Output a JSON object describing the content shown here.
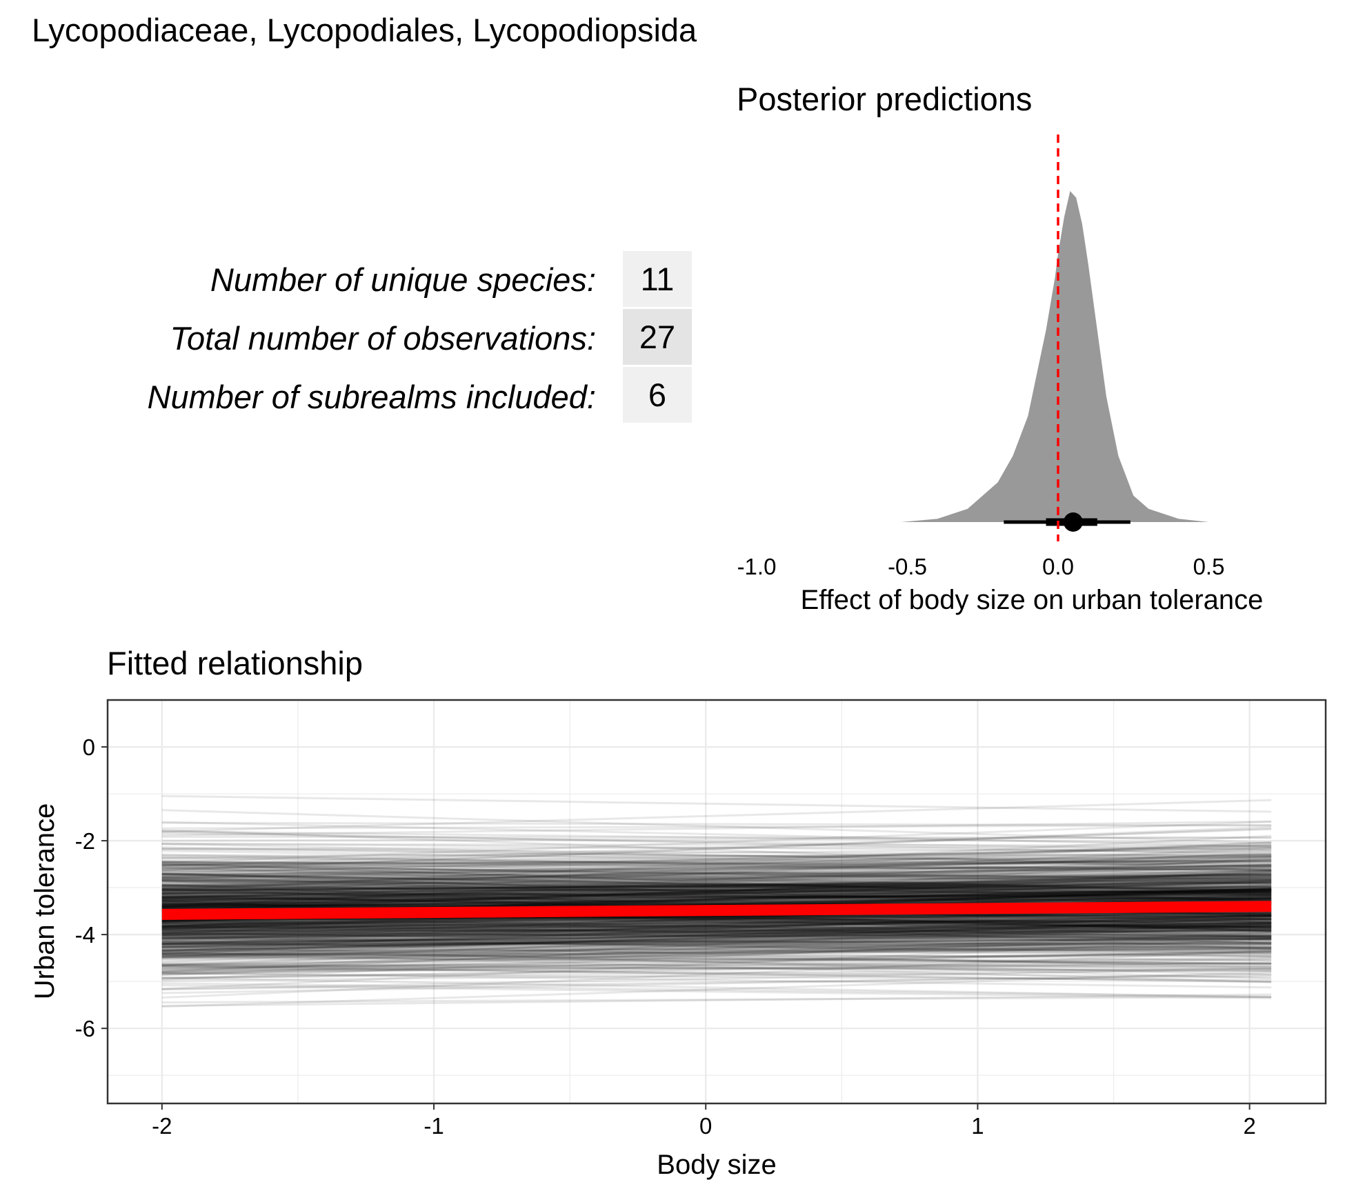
{
  "header": {
    "title": "Lycopodiaceae, Lycopodiales, Lycopodiopsida"
  },
  "stats": [
    {
      "label": "Number of unique species:",
      "value": "11",
      "color": "#f0f0f0"
    },
    {
      "label": "Total number of observations:",
      "value": "27",
      "color": "#e4e4e4"
    },
    {
      "label": "Number of subrealms included:",
      "value": "6",
      "color": "#f0f0f0"
    }
  ],
  "chart_data": [
    {
      "type": "area",
      "title": "Posterior predictions",
      "xlabel": "Effect of body size on urban tolerance",
      "ylabel": "",
      "xlim": [
        -1.0,
        0.7
      ],
      "xticks": [
        "-1.0",
        "-0.5",
        "0.0",
        "0.5"
      ],
      "reference_line": {
        "x": 0.0,
        "color": "#ff0000",
        "style": "dashed"
      },
      "density": {
        "x": [
          -0.52,
          -0.4,
          -0.3,
          -0.25,
          -0.2,
          -0.15,
          -0.1,
          -0.07,
          -0.04,
          -0.01,
          0.0,
          0.02,
          0.04,
          0.06,
          0.08,
          0.1,
          0.13,
          0.16,
          0.2,
          0.25,
          0.3,
          0.4,
          0.5
        ],
        "y": [
          0.0,
          0.01,
          0.04,
          0.08,
          0.12,
          0.2,
          0.32,
          0.45,
          0.58,
          0.74,
          0.81,
          0.92,
          1.0,
          0.98,
          0.9,
          0.78,
          0.58,
          0.38,
          0.2,
          0.08,
          0.04,
          0.01,
          0.0
        ]
      },
      "fill_color": "#999999",
      "point_estimate": 0.05,
      "interval_66": [
        -0.04,
        0.13
      ],
      "interval_95": [
        -0.18,
        0.24
      ]
    },
    {
      "type": "line",
      "title": "Fitted relationship",
      "xlabel": "Body size",
      "ylabel": "Urban tolerance",
      "xlim": [
        -2.2,
        2.28
      ],
      "ylim": [
        -7.6,
        1.0
      ],
      "xticks": [
        -2,
        -1,
        0,
        1,
        2
      ],
      "yticks": [
        0,
        -2,
        -4,
        -6
      ],
      "x_range": [
        -2,
        2.08
      ],
      "mean_line": {
        "x": [
          -2,
          2.08
        ],
        "y": [
          -3.57,
          -3.4
        ],
        "color": "#ff0000"
      },
      "posterior_draws": {
        "count": 700,
        "intercept_mean": -3.49,
        "intercept_sd": 0.65,
        "slope_mean": 0.04,
        "slope_sd": 0.1,
        "color": "#000000"
      },
      "grid": true
    }
  ]
}
